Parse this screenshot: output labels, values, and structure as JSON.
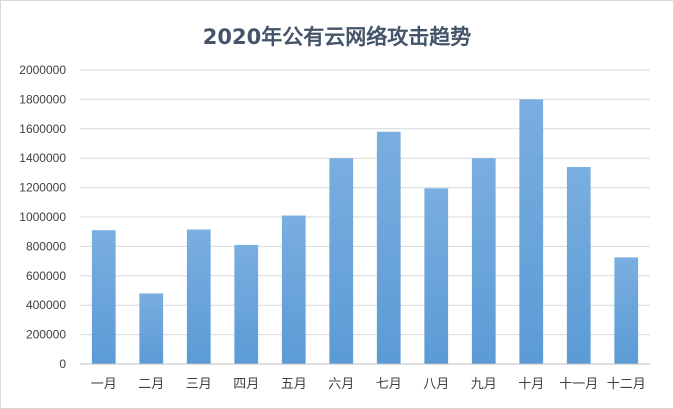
{
  "chart_data": {
    "type": "bar",
    "title": "2020年公有云网络攻击趋势",
    "xlabel": "",
    "ylabel": "",
    "categories": [
      "一月",
      "二月",
      "三月",
      "四月",
      "五月",
      "六月",
      "七月",
      "八月",
      "九月",
      "十月",
      "十一月",
      "十二月"
    ],
    "values": [
      910000,
      480000,
      915000,
      810000,
      1010000,
      1400000,
      1580000,
      1195000,
      1400000,
      1800000,
      1340000,
      725000
    ],
    "ylim": [
      0,
      2000000
    ],
    "yticks": [
      "0",
      "200000",
      "400000",
      "600000",
      "800000",
      "1000000",
      "1200000",
      "1400000",
      "1600000",
      "1800000",
      "2000000"
    ],
    "grid": true,
    "legend": "none",
    "bar_color": "#5b9bd5",
    "bar_color_light": "#7aaee0"
  }
}
